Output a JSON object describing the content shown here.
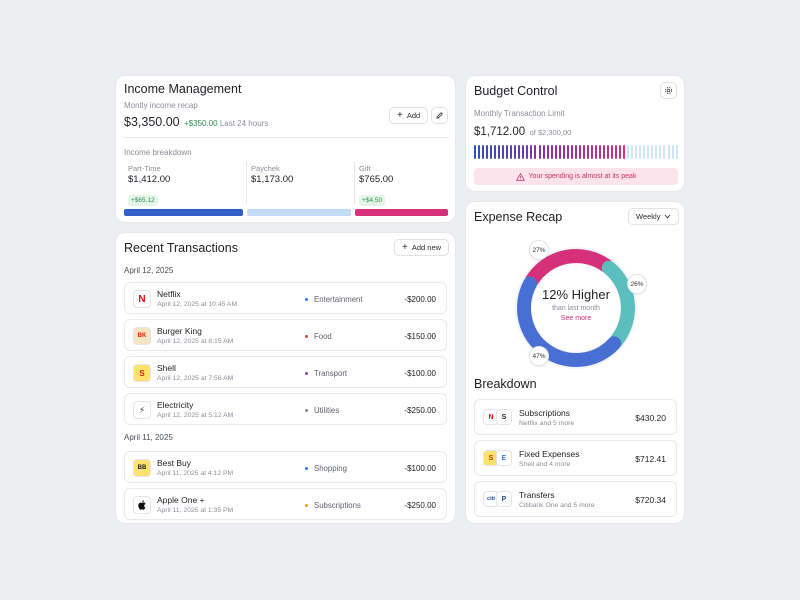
{
  "income": {
    "title": "Income Management",
    "subtitle": "Montly income recap",
    "amount": "$3,350.00",
    "change": "+$350.00",
    "period": "Last 24 hours",
    "add_label": "Add",
    "breakdown_label": "Income breakdown",
    "segments": [
      {
        "label": "Part-Time",
        "value": "$1,412.00",
        "badge": "+$65.12",
        "color": "#2f5fc4"
      },
      {
        "label": "Paychek",
        "value": "$1,173.00",
        "badge": "",
        "color": "#c4dcf3"
      },
      {
        "label": "Gift",
        "value": "$765.00",
        "badge": "+$4.50",
        "color": "#d6307a"
      }
    ]
  },
  "transactions": {
    "title": "Recent Transactions",
    "add_label": "Add new",
    "groups": [
      {
        "date": "April 12, 2025",
        "items": [
          {
            "name": "Netflix",
            "date": "April 12, 2025 at 10:45 AM",
            "category": "Entertainment",
            "amount": "-$200.00",
            "dot": "#2b7de9",
            "logo": "N"
          },
          {
            "name": "Burger King",
            "date": "April 12, 2025 at 8:15 AM",
            "category": "Food",
            "amount": "-$150.00",
            "dot": "#e23b3b",
            "logo": "BK"
          },
          {
            "name": "Shell",
            "date": "April 12, 2025 at 7:56 AM",
            "category": "Transport",
            "amount": "-$100.00",
            "dot": "#8e44ad",
            "logo": "S"
          },
          {
            "name": "Electricity",
            "date": "April 12, 2025 at 5:12 AM",
            "category": "Utilities",
            "amount": "-$250.00",
            "dot": "#7f8c8d",
            "logo": "⚡"
          }
        ]
      },
      {
        "date": "April 11, 2025",
        "items": [
          {
            "name": "Best Buy",
            "date": "April 11, 2025 at 4:12 PM",
            "category": "Shopping",
            "amount": "-$100.00",
            "dot": "#2b7de9",
            "logo": "BB"
          },
          {
            "name": "Apple One +",
            "date": "April 11, 2025 at 1:35 PM",
            "category": "Subscriptions",
            "amount": "-$250.00",
            "dot": "#f39c12",
            "logo": ""
          }
        ]
      }
    ]
  },
  "budget": {
    "title": "Budget Control",
    "limit_label": "Monthly Transaction Limit",
    "spent": "$1,712.00",
    "of_total": "of $2,300,00",
    "spent_fraction": 0.744,
    "warning": "Your spending is almost at its peak"
  },
  "expense": {
    "title": "Expense Recap",
    "period": "Weekly",
    "center_headline": "12% Higher",
    "center_sub": "than last month",
    "see_more": "See more",
    "slices": [
      {
        "label": "27%",
        "value": 27,
        "color": "#d6307a"
      },
      {
        "label": "26%",
        "value": 26,
        "color": "#5bbfbf"
      },
      {
        "label": "47%",
        "value": 47,
        "color": "#4a6fd4"
      }
    ],
    "breakdown_title": "Breakdown",
    "breakdown": [
      {
        "name": "Subscriptions",
        "sub": "Netflix and 5 more",
        "amount": "$430.20",
        "logos": [
          "N",
          "S"
        ]
      },
      {
        "name": "Fixed Expenses",
        "sub": "Shell and 4 more",
        "amount": "$712.41",
        "logos": [
          "S",
          "E"
        ]
      },
      {
        "name": "Transfers",
        "sub": "Citibank One and 5 more",
        "amount": "$720.34",
        "logos": [
          "citi",
          "P"
        ]
      }
    ]
  }
}
